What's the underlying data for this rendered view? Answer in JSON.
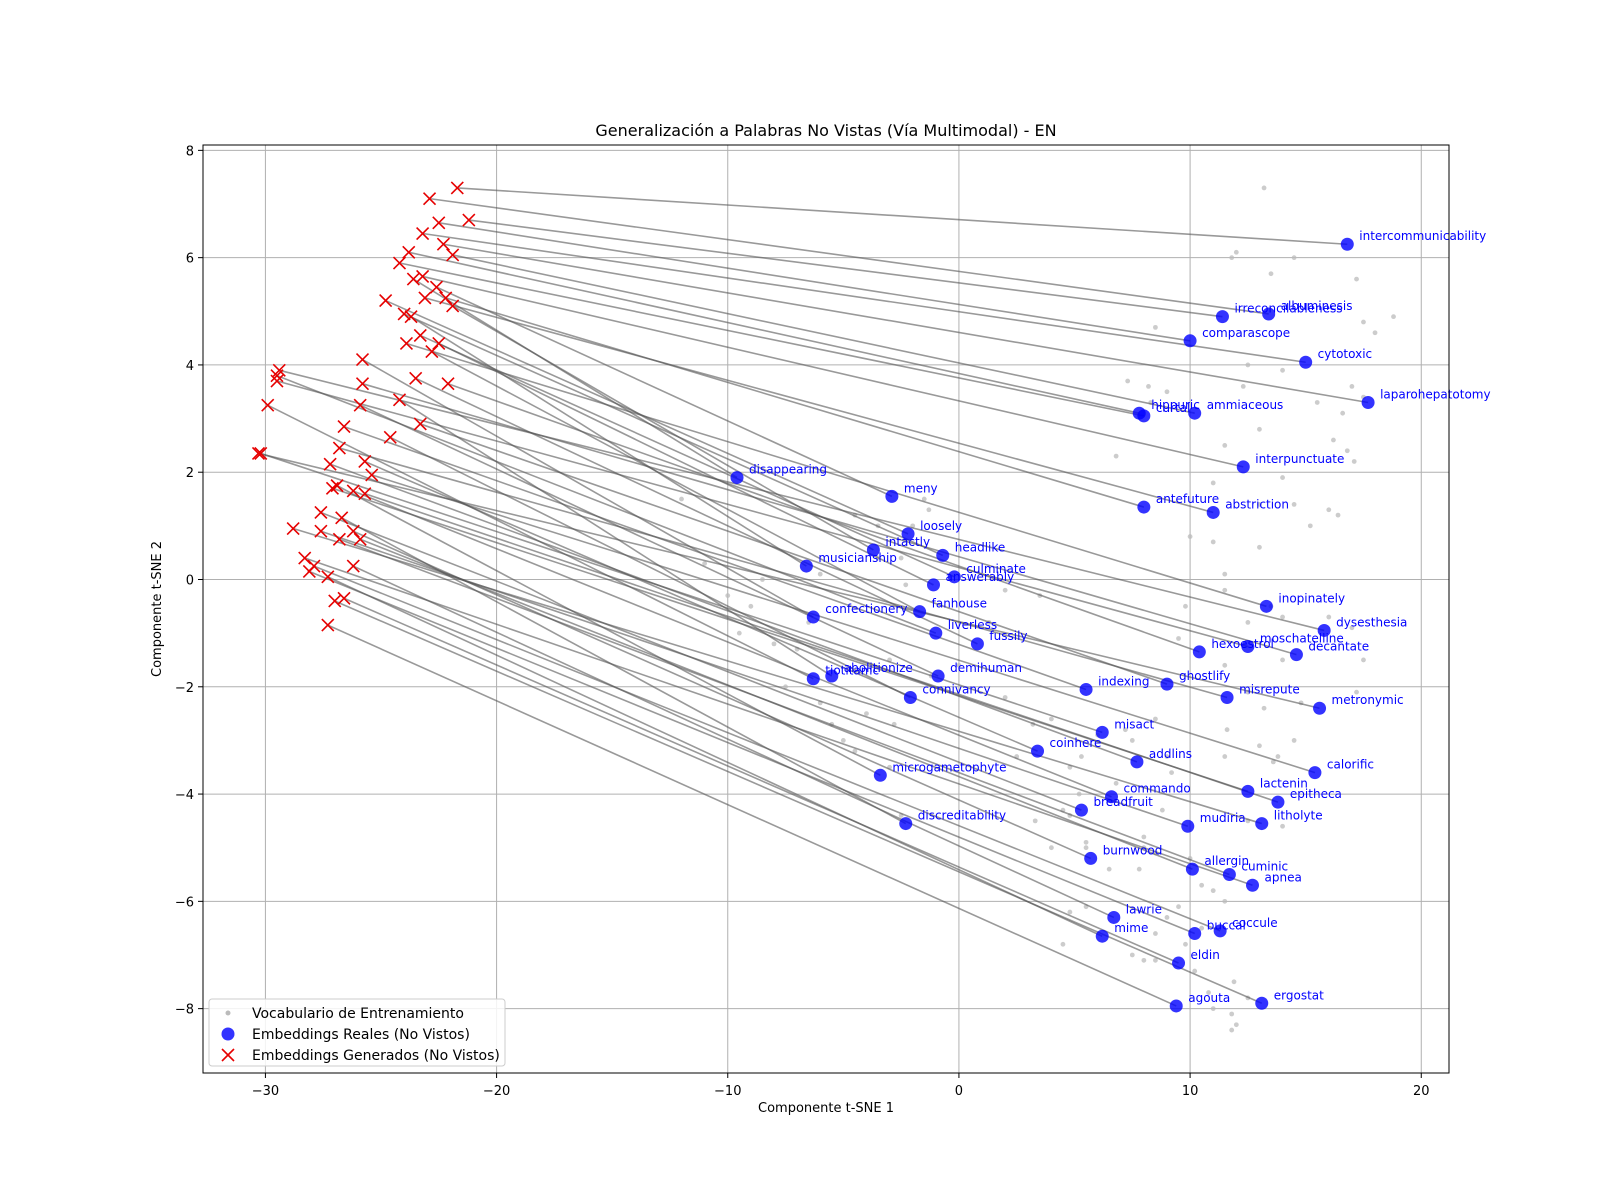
{
  "chart_data": {
    "type": "scatter",
    "title": "Generalización a Palabras No Vistas (Vía Multimodal) - EN",
    "xlabel": "Componente t-SNE 1",
    "ylabel": "Componente t-SNE 2",
    "xlim": [
      -32.7,
      21.2
    ],
    "ylim": [
      -9.2,
      8.1
    ],
    "xticks": [
      -30,
      -20,
      -10,
      0,
      10,
      20
    ],
    "yticks": [
      -8,
      -6,
      -4,
      -2,
      0,
      2,
      4,
      6,
      8
    ],
    "grid": true,
    "legend_position": "lower-left",
    "colors": {
      "real": "#0000ff",
      "generated": "#e60000",
      "vocab": "#bbbbbb",
      "connector": "#555555"
    },
    "legend": [
      {
        "label": "Vocabulario de Entrenamiento",
        "marker": "dot"
      },
      {
        "label": "Embeddings Reales (No Vistos)",
        "marker": "circle"
      },
      {
        "label": "Embeddings Generados (No Vistos)",
        "marker": "x"
      }
    ],
    "series": [
      {
        "name": "Vocabulario de Entrenamiento",
        "points": [
          [
            13.2,
            7.3
          ],
          [
            12.0,
            6.1
          ],
          [
            13.5,
            5.7
          ],
          [
            14.5,
            6.0
          ],
          [
            17.2,
            5.6
          ],
          [
            18.8,
            4.9
          ],
          [
            18.0,
            4.6
          ],
          [
            17.5,
            4.8
          ],
          [
            11.8,
            6.0
          ],
          [
            12.5,
            4.0
          ],
          [
            14.0,
            3.9
          ],
          [
            15.5,
            3.3
          ],
          [
            16.6,
            3.1
          ],
          [
            17.5,
            3.4
          ],
          [
            17.0,
            3.6
          ],
          [
            12.3,
            3.6
          ],
          [
            13.0,
            2.8
          ],
          [
            11.5,
            2.5
          ],
          [
            8.3,
            3.3
          ],
          [
            7.3,
            3.7
          ],
          [
            6.8,
            2.3
          ],
          [
            9.0,
            3.5
          ],
          [
            8.2,
            3.6
          ],
          [
            8.5,
            4.7
          ],
          [
            11.0,
            1.8
          ],
          [
            13.0,
            1.4
          ],
          [
            14.5,
            1.4
          ],
          [
            15.2,
            1.0
          ],
          [
            16.0,
            1.3
          ],
          [
            16.4,
            1.2
          ],
          [
            17.1,
            2.2
          ],
          [
            16.8,
            2.4
          ],
          [
            16.2,
            2.6
          ],
          [
            14.0,
            1.9
          ],
          [
            13.0,
            0.6
          ],
          [
            11.0,
            0.7
          ],
          [
            10.0,
            0.8
          ],
          [
            11.5,
            0.1
          ],
          [
            11.5,
            -0.2
          ],
          [
            13.5,
            -0.5
          ],
          [
            14.0,
            -0.7
          ],
          [
            12.5,
            -0.8
          ],
          [
            9.8,
            -0.5
          ],
          [
            9.5,
            -1.1
          ],
          [
            11.5,
            -1.6
          ],
          [
            16.0,
            -0.7
          ],
          [
            17.0,
            -0.9
          ],
          [
            17.5,
            -1.5
          ],
          [
            17.2,
            -2.1
          ],
          [
            14.0,
            -1.5
          ],
          [
            14.8,
            -2.3
          ],
          [
            12.5,
            -2.1
          ],
          [
            13.2,
            -2.4
          ],
          [
            8.5,
            -2.6
          ],
          [
            7.2,
            -2.8
          ],
          [
            6.0,
            -2.9
          ],
          [
            4.8,
            -3.5
          ],
          [
            5.3,
            -3.3
          ],
          [
            2.5,
            -3.3
          ],
          [
            3.2,
            -2.7
          ],
          [
            4.0,
            -2.6
          ],
          [
            7.5,
            -3.0
          ],
          [
            9.0,
            -3.3
          ],
          [
            11.6,
            -2.8
          ],
          [
            11.5,
            -3.3
          ],
          [
            13.0,
            -3.1
          ],
          [
            13.8,
            -3.3
          ],
          [
            13.6,
            -3.4
          ],
          [
            14.5,
            -3.0
          ],
          [
            14.0,
            -4.6
          ],
          [
            12.5,
            -4.5
          ],
          [
            9.2,
            -3.6
          ],
          [
            8.8,
            -4.3
          ],
          [
            8.0,
            -4.8
          ],
          [
            6.8,
            -3.8
          ],
          [
            5.2,
            -4.0
          ],
          [
            4.5,
            -4.3
          ],
          [
            3.3,
            -4.5
          ],
          [
            4.8,
            -4.4
          ],
          [
            5.5,
            -4.9
          ],
          [
            4.0,
            -5.0
          ],
          [
            5.5,
            -5.0
          ],
          [
            6.5,
            -5.4
          ],
          [
            8.0,
            -5.0
          ],
          [
            8.5,
            -5.1
          ],
          [
            7.8,
            -5.4
          ],
          [
            10.0,
            -5.2
          ],
          [
            10.5,
            -5.7
          ],
          [
            11.0,
            -5.8
          ],
          [
            11.5,
            -6.0
          ],
          [
            9.5,
            -6.1
          ],
          [
            10.5,
            -6.5
          ],
          [
            9.0,
            -6.3
          ],
          [
            9.8,
            -6.8
          ],
          [
            8.5,
            -7.1
          ],
          [
            8.0,
            -7.1
          ],
          [
            7.5,
            -7.0
          ],
          [
            8.5,
            -6.6
          ],
          [
            4.8,
            -6.2
          ],
          [
            5.5,
            -6.1
          ],
          [
            4.5,
            -6.8
          ],
          [
            10.8,
            -7.7
          ],
          [
            11.0,
            -8.0
          ],
          [
            11.8,
            -8.1
          ],
          [
            12.0,
            -8.3
          ],
          [
            11.9,
            -7.5
          ],
          [
            10.2,
            -7.3
          ],
          [
            12.5,
            -7.8
          ],
          [
            11.8,
            -8.4
          ],
          [
            -3.0,
            -1.5
          ],
          [
            -2.8,
            -2.7
          ],
          [
            -4.0,
            -2.5
          ],
          [
            -5.0,
            -3.0
          ],
          [
            -6.5,
            -0.8
          ],
          [
            -7.0,
            -1.3
          ],
          [
            -8.0,
            -1.2
          ],
          [
            -7.5,
            -2.0
          ],
          [
            -8.5,
            0.0
          ],
          [
            -9.0,
            -0.5
          ],
          [
            -6.0,
            0.1
          ],
          [
            -4.5,
            1.2
          ],
          [
            -3.5,
            1.0
          ],
          [
            -2.5,
            0.4
          ],
          [
            -2.0,
            1.0
          ],
          [
            -1.5,
            1.5
          ],
          [
            -1.3,
            1.3
          ],
          [
            -2.3,
            -0.1
          ],
          [
            -3.5,
            0.4
          ],
          [
            -6.0,
            -2.3
          ],
          [
            -5.5,
            -2.7
          ],
          [
            -1.2,
            -1.8
          ],
          [
            0.0,
            -1.6
          ],
          [
            2.0,
            -2.2
          ],
          [
            1.3,
            -0.8
          ],
          [
            3.5,
            -0.3
          ],
          [
            2.0,
            -0.2
          ],
          [
            -4.5,
            -3.2
          ],
          [
            -3.0,
            -3.5
          ],
          [
            -2.5,
            -4.4
          ],
          [
            -9.5,
            -1.0
          ],
          [
            -10.0,
            -0.3
          ],
          [
            -11.0,
            0.3
          ],
          [
            -12.0,
            1.5
          ]
        ]
      },
      {
        "name": "Embeddings Reales (No Vistos)",
        "points": [
          {
            "label": "intercommunicability",
            "x": 16.8,
            "y": 6.25
          },
          {
            "label": "irreconcilableness",
            "x": 11.4,
            "y": 4.9
          },
          {
            "label": "albuminesis",
            "x": 13.4,
            "y": 4.95
          },
          {
            "label": "comparascope",
            "x": 10.0,
            "y": 4.45
          },
          {
            "label": "cytotoxic",
            "x": 15.0,
            "y": 4.05
          },
          {
            "label": "laparohepatotomy",
            "x": 17.7,
            "y": 3.3
          },
          {
            "label": "hippuric",
            "x": 7.8,
            "y": 3.1
          },
          {
            "label": "curtal",
            "x": 8.0,
            "y": 3.05
          },
          {
            "label": "ammiaceous",
            "x": 10.2,
            "y": 3.1
          },
          {
            "label": "interpunctuate",
            "x": 12.3,
            "y": 2.1
          },
          {
            "label": "antefuture",
            "x": 8.0,
            "y": 1.35
          },
          {
            "label": "abstriction",
            "x": 11.0,
            "y": 1.25
          },
          {
            "label": "disappearing",
            "x": -9.6,
            "y": 1.9
          },
          {
            "label": "meny",
            "x": -2.9,
            "y": 1.55
          },
          {
            "label": "loosely",
            "x": -2.2,
            "y": 0.85
          },
          {
            "label": "intactly",
            "x": -3.7,
            "y": 0.55
          },
          {
            "label": "headlike",
            "x": -0.7,
            "y": 0.45
          },
          {
            "label": "musicianship",
            "x": -6.6,
            "y": 0.25
          },
          {
            "label": "culminate",
            "x": -0.2,
            "y": 0.05
          },
          {
            "label": "answerably",
            "x": -1.1,
            "y": -0.1
          },
          {
            "label": "inopinately",
            "x": 13.3,
            "y": -0.5
          },
          {
            "label": "fanhouse",
            "x": -1.7,
            "y": -0.6
          },
          {
            "label": "confectionery",
            "x": -6.3,
            "y": -0.7
          },
          {
            "label": "liverless",
            "x": -1.0,
            "y": -1.0
          },
          {
            "label": "dysesthesia",
            "x": 15.8,
            "y": -0.95
          },
          {
            "label": "fussily",
            "x": 0.8,
            "y": -1.2
          },
          {
            "label": "moschatelline",
            "x": 12.5,
            "y": -1.25
          },
          {
            "label": "hexoestrol",
            "x": 10.4,
            "y": -1.35
          },
          {
            "label": "decantate",
            "x": 14.6,
            "y": -1.4
          },
          {
            "label": "abolitionize",
            "x": -5.5,
            "y": -1.8
          },
          {
            "label": "tiotitamc",
            "x": -6.3,
            "y": -1.85
          },
          {
            "label": "demihuman",
            "x": -0.9,
            "y": -1.8
          },
          {
            "label": "indexing",
            "x": 5.5,
            "y": -2.05
          },
          {
            "label": "ghostlify",
            "x": 9.0,
            "y": -1.95
          },
          {
            "label": "connivancy",
            "x": -2.1,
            "y": -2.2
          },
          {
            "label": "misrepute",
            "x": 11.6,
            "y": -2.2
          },
          {
            "label": "metronymic",
            "x": 15.6,
            "y": -2.4
          },
          {
            "label": "misact",
            "x": 6.2,
            "y": -2.85
          },
          {
            "label": "coinhere",
            "x": 3.4,
            "y": -3.2
          },
          {
            "label": "addlins",
            "x": 7.7,
            "y": -3.4
          },
          {
            "label": "calorific",
            "x": 15.4,
            "y": -3.6
          },
          {
            "label": "microgametophyte",
            "x": -3.4,
            "y": -3.65
          },
          {
            "label": "lactenin",
            "x": 12.5,
            "y": -3.95
          },
          {
            "label": "commando",
            "x": 6.6,
            "y": -4.05
          },
          {
            "label": "epitheca",
            "x": 13.8,
            "y": -4.15
          },
          {
            "label": "breadfruit",
            "x": 5.3,
            "y": -4.3
          },
          {
            "label": "discreditability",
            "x": -2.3,
            "y": -4.55
          },
          {
            "label": "mudiria",
            "x": 9.9,
            "y": -4.6
          },
          {
            "label": "litholyte",
            "x": 13.1,
            "y": -4.55
          },
          {
            "label": "burnwood",
            "x": 5.7,
            "y": -5.2
          },
          {
            "label": "allergin",
            "x": 10.1,
            "y": -5.4
          },
          {
            "label": "cuminic",
            "x": 11.7,
            "y": -5.5
          },
          {
            "label": "apnea",
            "x": 12.7,
            "y": -5.7
          },
          {
            "label": "lawrie",
            "x": 6.7,
            "y": -6.3
          },
          {
            "label": "mime",
            "x": 6.2,
            "y": -6.65
          },
          {
            "label": "buccal",
            "x": 10.2,
            "y": -6.6
          },
          {
            "label": "coccule",
            "x": 11.3,
            "y": -6.55
          },
          {
            "label": "eldin",
            "x": 9.5,
            "y": -7.15
          },
          {
            "label": "agouta",
            "x": 9.4,
            "y": -7.95
          },
          {
            "label": "ergostat",
            "x": 13.1,
            "y": -7.9
          }
        ]
      },
      {
        "name": "Embeddings Generados (No Vistos)",
        "points": [
          [
            -22.9,
            7.1
          ],
          [
            -21.7,
            7.3
          ],
          [
            -22.5,
            6.65
          ],
          [
            -21.2,
            6.7
          ],
          [
            -23.2,
            6.45
          ],
          [
            -22.3,
            6.25
          ],
          [
            -23.8,
            6.1
          ],
          [
            -21.9,
            6.05
          ],
          [
            -24.2,
            5.9
          ],
          [
            -23.2,
            5.65
          ],
          [
            -23.6,
            5.6
          ],
          [
            -22.6,
            5.45
          ],
          [
            -22.2,
            5.25
          ],
          [
            -23.1,
            5.25
          ],
          [
            -24.8,
            5.2
          ],
          [
            -21.9,
            5.1
          ],
          [
            -24.0,
            4.95
          ],
          [
            -23.7,
            4.9
          ],
          [
            -23.3,
            4.55
          ],
          [
            -22.5,
            4.4
          ],
          [
            -23.9,
            4.4
          ],
          [
            -22.8,
            4.25
          ],
          [
            -25.8,
            4.1
          ],
          [
            -23.5,
            3.75
          ],
          [
            -22.1,
            3.65
          ],
          [
            -25.8,
            3.65
          ],
          [
            -29.4,
            3.9
          ],
          [
            -29.5,
            3.8
          ],
          [
            -29.5,
            3.7
          ],
          [
            -24.2,
            3.35
          ],
          [
            -25.9,
            3.25
          ],
          [
            -29.9,
            3.25
          ],
          [
            -23.3,
            2.9
          ],
          [
            -26.6,
            2.85
          ],
          [
            -24.6,
            2.65
          ],
          [
            -30.3,
            2.35
          ],
          [
            -30.2,
            2.35
          ],
          [
            -26.8,
            2.45
          ],
          [
            -25.7,
            2.2
          ],
          [
            -27.2,
            2.15
          ],
          [
            -25.4,
            1.95
          ],
          [
            -26.9,
            1.75
          ],
          [
            -27.1,
            1.7
          ],
          [
            -26.2,
            1.65
          ],
          [
            -25.7,
            1.6
          ],
          [
            -27.6,
            1.25
          ],
          [
            -26.7,
            1.15
          ],
          [
            -28.8,
            0.95
          ],
          [
            -27.6,
            0.9
          ],
          [
            -26.2,
            0.9
          ],
          [
            -25.9,
            0.75
          ],
          [
            -26.8,
            0.75
          ],
          [
            -28.3,
            0.4
          ],
          [
            -26.2,
            0.25
          ],
          [
            -27.9,
            0.25
          ],
          [
            -28.1,
            0.15
          ],
          [
            -27.3,
            0.05
          ],
          [
            -26.6,
            -0.35
          ],
          [
            -27.0,
            -0.4
          ],
          [
            -27.3,
            -0.85
          ]
        ]
      }
    ]
  }
}
